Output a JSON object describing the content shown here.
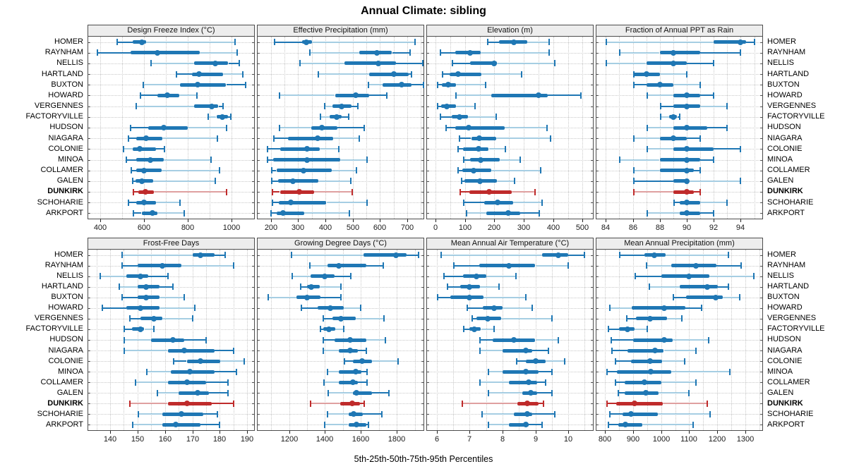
{
  "title": "Annual Climate: sibling",
  "xlabel": "5th-25th-50th-75th-95th Percentiles",
  "locations": [
    "HOMER",
    "RAYNHAM",
    "NELLIS",
    "HARTLAND",
    "BUXTON",
    "HOWARD",
    "VERGENNES",
    "FACTORYVILLE",
    "HUDSON",
    "NIAGARA",
    "COLONIE",
    "MINOA",
    "COLLAMER",
    "GALEN",
    "DUNKIRK",
    "SCHOHARIE",
    "ARKPORT"
  ],
  "highlight_location": "DUNKIRK",
  "percentile_levels": [
    "5th",
    "25th",
    "50th",
    "75th",
    "95th"
  ],
  "colors": {
    "series": "#1f77b4",
    "series_light": "#a6cee3",
    "highlight": "#bf2b2b",
    "highlight_light": "#dfa0a0",
    "grid": "#c8c8c8",
    "strip_bg": "#ededed",
    "panel_border": "#4d4d4d",
    "tick": "#222222"
  },
  "chart_data": [
    {
      "type": "percentile-dotplot",
      "panel_title": "Design Freeze Index (°C)",
      "grid_row": "top",
      "xticks": [
        400,
        600,
        800,
        1000
      ],
      "grid_step": 100,
      "xlim": [
        346,
        1102
      ],
      "row_order": "locations",
      "values": [
        [
          475,
          550,
          590,
          610,
          1015
        ],
        [
          385,
          540,
          660,
          855,
          1025
        ],
        [
          630,
          830,
          925,
          985,
          1035
        ],
        [
          745,
          820,
          850,
          960,
          1050
        ],
        [
          595,
          765,
          845,
          975,
          1065
        ],
        [
          580,
          660,
          705,
          760,
          840
        ],
        [
          560,
          830,
          908,
          940,
          962
        ],
        [
          890,
          930,
          958,
          980,
          996
        ],
        [
          535,
          620,
          690,
          800,
          975
        ],
        [
          525,
          565,
          610,
          685,
          935
        ],
        [
          505,
          550,
          580,
          655,
          695
        ],
        [
          515,
          565,
          630,
          690,
          905
        ],
        [
          540,
          565,
          600,
          680,
          945
        ],
        [
          545,
          560,
          590,
          640,
          925
        ],
        [
          550,
          575,
          605,
          645,
          975
        ],
        [
          525,
          565,
          600,
          655,
          765
        ],
        [
          550,
          590,
          640,
          660,
          785
        ]
      ]
    },
    {
      "type": "percentile-dotplot",
      "panel_title": "Effective Precipitation (mm)",
      "grid_row": "top",
      "xticks": [
        200,
        300,
        400,
        500,
        600,
        700
      ],
      "grid_step": 50,
      "xlim": [
        151,
        760
      ],
      "row_order": "locations",
      "values": [
        [
          210,
          315,
          330,
          350,
          730
        ],
        [
          340,
          525,
          590,
          645,
          710
        ],
        [
          305,
          470,
          595,
          660,
          758
        ],
        [
          370,
          560,
          650,
          705,
          716
        ],
        [
          555,
          610,
          680,
          715,
          760
        ],
        [
          230,
          435,
          510,
          560,
          625
        ],
        [
          395,
          425,
          460,
          495,
          520
        ],
        [
          380,
          415,
          440,
          460,
          485
        ],
        [
          230,
          348,
          387,
          445,
          543
        ],
        [
          207,
          262,
          372,
          427,
          525
        ],
        [
          185,
          233,
          333,
          378,
          448
        ],
        [
          184,
          207,
          333,
          453,
          552
        ],
        [
          201,
          220,
          320,
          421,
          515
        ],
        [
          200,
          227,
          280,
          375,
          494
        ],
        [
          204,
          233,
          305,
          357,
          498
        ],
        [
          204,
          230,
          274,
          404,
          552
        ],
        [
          197,
          220,
          244,
          320,
          487
        ]
      ]
    },
    {
      "type": "percentile-dotplot",
      "panel_title": "Elevation (m)",
      "grid_row": "top",
      "xticks": [
        0,
        100,
        200,
        300,
        400,
        500
      ],
      "grid_step": 50,
      "xlim": [
        -29,
        535
      ],
      "row_order": "locations",
      "values": [
        [
          175,
          215,
          265,
          310,
          385
        ],
        [
          13,
          66,
          117,
          153,
          387
        ],
        [
          54,
          117,
          198,
          209,
          405
        ],
        [
          22,
          48,
          76,
          155,
          292
        ],
        [
          5,
          22,
          42,
          70,
          170
        ],
        [
          68,
          190,
          350,
          382,
          494
        ],
        [
          4,
          20,
          37,
          70,
          133
        ],
        [
          14,
          54,
          82,
          110,
          205
        ],
        [
          33,
          66,
          112,
          233,
          378
        ],
        [
          80,
          121,
          149,
          205,
          391
        ],
        [
          74,
          94,
          145,
          181,
          238
        ],
        [
          94,
          117,
          153,
          217,
          287
        ],
        [
          74,
          90,
          129,
          189,
          358
        ],
        [
          86,
          98,
          152,
          209,
          268
        ],
        [
          82,
          116,
          183,
          260,
          338
        ],
        [
          94,
          165,
          211,
          263,
          362
        ],
        [
          104,
          173,
          248,
          288,
          352
        ]
      ]
    },
    {
      "type": "percentile-dotplot",
      "panel_title": "Fraction of Annual PPT as Rain",
      "grid_row": "top",
      "xticks": [
        84,
        86,
        88,
        90,
        92,
        94
      ],
      "grid_step": 1,
      "xlim": [
        83.3,
        95.6
      ],
      "row_order": "locations",
      "values": [
        [
          84,
          92,
          94,
          94.4,
          95
        ],
        [
          85,
          88,
          89,
          91,
          94
        ],
        [
          84,
          87,
          89,
          90,
          92
        ],
        [
          86,
          86,
          87,
          88,
          90
        ],
        [
          86,
          87,
          88,
          89,
          91
        ],
        [
          87,
          89,
          90,
          91,
          92
        ],
        [
          88,
          89,
          90,
          91,
          93
        ],
        [
          88,
          88.7,
          89,
          89.3,
          89.5
        ],
        [
          87,
          89,
          90,
          91.5,
          93
        ],
        [
          86,
          88,
          89,
          90,
          91
        ],
        [
          87,
          89,
          90,
          92,
          94
        ],
        [
          85,
          88,
          90,
          91,
          92
        ],
        [
          86,
          88,
          90,
          90.5,
          91
        ],
        [
          86,
          89,
          90,
          90,
          94
        ],
        [
          86,
          89,
          90,
          90.5,
          91
        ],
        [
          89,
          89.5,
          90,
          91,
          93
        ],
        [
          87,
          89.5,
          90,
          91,
          92
        ]
      ]
    },
    {
      "type": "percentile-dotplot",
      "panel_title": "Frost-Free Days",
      "grid_row": "bottom",
      "xticks": [
        140,
        150,
        160,
        170,
        180,
        190
      ],
      "grid_step": 5,
      "xlim": [
        132,
        192.5
      ],
      "row_order": "locations",
      "values": [
        [
          144,
          170,
          173,
          178,
          182
        ],
        [
          144,
          150,
          159,
          166,
          185
        ],
        [
          136,
          146,
          151,
          154,
          161
        ],
        [
          143,
          150,
          153,
          158,
          163
        ],
        [
          144,
          150,
          153,
          158,
          167
        ],
        [
          137,
          146,
          151,
          158,
          171
        ],
        [
          147,
          151,
          156,
          159,
          170
        ],
        [
          145,
          148,
          151,
          152.5,
          156
        ],
        [
          145,
          155,
          163,
          167,
          175
        ],
        [
          145,
          161,
          167,
          178,
          185
        ],
        [
          163,
          168,
          173,
          180,
          189
        ],
        [
          153,
          162,
          169,
          178,
          186
        ],
        [
          149,
          161,
          168,
          175,
          183
        ],
        [
          157,
          165,
          172,
          176,
          183
        ],
        [
          147,
          161,
          168,
          177,
          185
        ],
        [
          150,
          159,
          166,
          174,
          179
        ],
        [
          148,
          159,
          164,
          173,
          180
        ]
      ]
    },
    {
      "type": "percentile-dotplot",
      "panel_title": "Growing Degree Days (°C)",
      "grid_row": "bottom",
      "xticks": [
        1200,
        1400,
        1600,
        1800
      ],
      "grid_step": 100,
      "xlim": [
        1025,
        1948
      ],
      "row_order": "locations",
      "values": [
        [
          1210,
          1615,
          1795,
          1855,
          1920
        ],
        [
          1310,
          1415,
          1475,
          1630,
          1725
        ],
        [
          1215,
          1320,
          1400,
          1455,
          1545
        ],
        [
          1260,
          1300,
          1325,
          1370,
          1490
        ],
        [
          1080,
          1240,
          1300,
          1375,
          1490
        ],
        [
          1265,
          1360,
          1430,
          1505,
          1600
        ],
        [
          1385,
          1440,
          1490,
          1570,
          1730
        ],
        [
          1370,
          1390,
          1420,
          1455,
          1505
        ],
        [
          1385,
          1455,
          1540,
          1630,
          1735
        ],
        [
          1385,
          1475,
          1540,
          1580,
          1630
        ],
        [
          1505,
          1555,
          1605,
          1660,
          1805
        ],
        [
          1410,
          1475,
          1570,
          1600,
          1635
        ],
        [
          1390,
          1475,
          1555,
          1580,
          1635
        ],
        [
          1415,
          1555,
          1575,
          1660,
          1755
        ],
        [
          1315,
          1485,
          1550,
          1595,
          1620
        ],
        [
          1410,
          1530,
          1560,
          1610,
          1715
        ],
        [
          1395,
          1530,
          1575,
          1630,
          1640
        ]
      ]
    },
    {
      "type": "percentile-dotplot",
      "panel_title": "Mean Annual Air Temperature (°C)",
      "grid_row": "bottom",
      "xticks": [
        6,
        7,
        8,
        9,
        10
      ],
      "grid_step": 0.5,
      "xlim": [
        5.7,
        10.75
      ],
      "row_order": "locations",
      "values": [
        [
          6.1,
          9.2,
          9.7,
          10.0,
          10.5
        ],
        [
          6.5,
          7.3,
          8.2,
          9.0,
          10.0
        ],
        [
          6.2,
          6.8,
          7.2,
          7.5,
          8.4
        ],
        [
          6.3,
          6.7,
          7.0,
          7.3,
          7.9
        ],
        [
          6.0,
          6.4,
          7.0,
          7.4,
          8.7
        ],
        [
          6.9,
          7.4,
          7.75,
          8.0,
          8.9
        ],
        [
          7.05,
          7.2,
          7.55,
          7.95,
          9.5
        ],
        [
          6.8,
          7.0,
          7.15,
          7.35,
          7.75
        ],
        [
          7.3,
          7.7,
          8.35,
          9.0,
          9.7
        ],
        [
          7.3,
          8.0,
          8.7,
          8.9,
          9.4
        ],
        [
          8.4,
          8.7,
          9.0,
          9.3,
          9.9
        ],
        [
          7.55,
          8.0,
          8.7,
          9.1,
          9.5
        ],
        [
          7.3,
          8.2,
          8.8,
          9.05,
          9.3
        ],
        [
          7.55,
          8.6,
          8.85,
          9.05,
          9.5
        ],
        [
          6.75,
          8.45,
          8.75,
          9.1,
          9.25
        ],
        [
          7.35,
          8.35,
          8.75,
          8.9,
          9.6
        ],
        [
          7.55,
          8.2,
          8.7,
          8.8,
          9.2
        ]
      ]
    },
    {
      "type": "percentile-dotplot",
      "panel_title": "Mean Annual Precipitation (mm)",
      "grid_row": "bottom",
      "xticks": [
        800,
        900,
        1000,
        1100,
        1200,
        1300
      ],
      "grid_step": 50,
      "xlim": [
        770,
        1360
      ],
      "row_order": "locations",
      "values": [
        [
          850,
          940,
          975,
          1015,
          1240
        ],
        [
          945,
          1035,
          1125,
          1195,
          1285
        ],
        [
          905,
          1000,
          1100,
          1170,
          1330
        ],
        [
          955,
          1065,
          1165,
          1200,
          1240
        ],
        [
          1040,
          1090,
          1195,
          1220,
          1280
        ],
        [
          815,
          895,
          1010,
          1085,
          1145
        ],
        [
          875,
          910,
          960,
          1020,
          1075
        ],
        [
          810,
          850,
          880,
          905,
          950
        ],
        [
          820,
          900,
          1010,
          1040,
          1170
        ],
        [
          823,
          881,
          978,
          1010,
          1125
        ],
        [
          835,
          892,
          962,
          1003,
          1085
        ],
        [
          804,
          844,
          964,
          1037,
          1245
        ],
        [
          835,
          870,
          940,
          1000,
          1125
        ],
        [
          845,
          870,
          945,
          990,
          1100
        ],
        [
          805,
          840,
          905,
          1005,
          1165
        ],
        [
          815,
          862,
          892,
          987,
          1175
        ],
        [
          810,
          848,
          873,
          934,
          1115
        ]
      ]
    }
  ]
}
